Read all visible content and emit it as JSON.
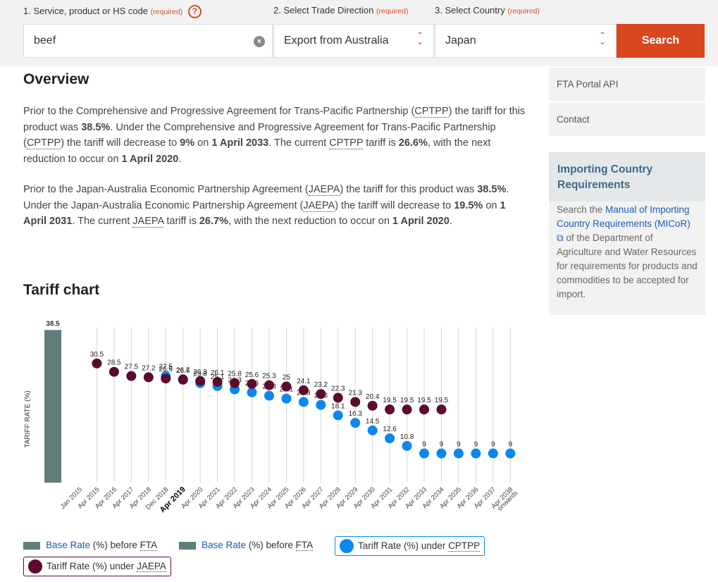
{
  "search": {
    "field1_label": "1. Service, product or HS code",
    "field1_req": "(required)",
    "help_icon": "question-icon",
    "product_value": "beef",
    "field2_label": "2. Select Trade Direction",
    "field2_req": "(required)",
    "direction_value": "Export from Australia",
    "field3_label": "3. Select Country",
    "field3_req": "(required)",
    "country_value": "Japan",
    "search_label": "Search"
  },
  "overview": {
    "title": "Overview",
    "p1": [
      {
        "t": "Prior to the Comprehensive and Progressive Agreement for Trans-Pacific Partnership ("
      },
      {
        "t": "CPTPP",
        "abbr": true
      },
      {
        "t": ") the tariff for this product was "
      },
      {
        "t": "38.5%",
        "b": true
      },
      {
        "t": ". Under the Comprehensive and Progressive Agreement for Trans-Pacific Partnership ("
      },
      {
        "t": "CPTPP",
        "abbr": true
      },
      {
        "t": ") the tariff will decrease to "
      },
      {
        "t": "9%",
        "b": true
      },
      {
        "t": " on "
      },
      {
        "t": "1 April 2033",
        "b": true
      },
      {
        "t": ". The current "
      },
      {
        "t": "CPTPP",
        "abbr": true
      },
      {
        "t": " tariff is "
      },
      {
        "t": "26.6%",
        "b": true
      },
      {
        "t": ", with the next reduction to occur on "
      },
      {
        "t": "1 April 2020",
        "b": true
      },
      {
        "t": "."
      }
    ],
    "p2": [
      {
        "t": "Prior to the Japan-Australia Economic Partnership Agreement ("
      },
      {
        "t": "JAEPA",
        "abbr": true
      },
      {
        "t": ") the tariff for this product was "
      },
      {
        "t": "38.5%",
        "b": true
      },
      {
        "t": ". Under the Japan-Australia Economic Partnership Agreement ("
      },
      {
        "t": "JAEPA",
        "abbr": true
      },
      {
        "t": ") the tariff will decrease to "
      },
      {
        "t": "19.5%",
        "b": true
      },
      {
        "t": " on "
      },
      {
        "t": "1 April 2031",
        "b": true
      },
      {
        "t": ". The current "
      },
      {
        "t": "JAEPA",
        "abbr": true
      },
      {
        "t": " tariff is "
      },
      {
        "t": "26.7%",
        "b": true
      },
      {
        "t": ", with the next reduction to occur on "
      },
      {
        "t": "1 April 2020",
        "b": true
      },
      {
        "t": "."
      }
    ]
  },
  "sidebar": {
    "link1": "FTA Portal API",
    "link2": "Contact",
    "box_title": "Importing Country Requirements",
    "box_pre": "Search the ",
    "box_link": "Manual of Importing Country Requirements (MICoR)",
    "box_post": " of the Department of Agriculture and Water Resources for requirements for products and commodities to be accepted for import."
  },
  "chart_title": "Tariff chart",
  "chart_data": {
    "type": "scatter",
    "ylabel": "TARIFF RATE (%)",
    "colors": {
      "base": "#607d7b",
      "cptpp": "#0b87ef",
      "jaepa": "#5c0a30"
    },
    "categories": [
      "Jan 2015",
      "Apr 2015",
      "Apr 2016",
      "Apr 2017",
      "Apr 2018",
      "Dec 2018",
      "Apr 2019",
      "Apr 2020",
      "Apr 2021",
      "Apr 2022",
      "Apr 2023",
      "Apr 2024",
      "Apr 2025",
      "Apr 2026",
      "Apr 2027",
      "Apr 2028",
      "Apr 2029",
      "Apr 2030",
      "Apr 2031",
      "Apr 2032",
      "Apr 2033",
      "Apr 2034",
      "Apr 2035",
      "Apr 2036",
      "Apr 2037",
      "Apr 2038 onwards"
    ],
    "highlight_category": "Apr 2019",
    "base_rate": {
      "category": "Jan 2015",
      "value": 38.5
    },
    "series": [
      {
        "name": "Tariff Rate (%) under CPTPP",
        "values": [
          null,
          null,
          null,
          null,
          null,
          27.5,
          26.6,
          25.8,
          25.1,
          24.3,
          23.6,
          22.8,
          22.1,
          21.3,
          20.6,
          18.1,
          16.3,
          14.5,
          12.6,
          10.8,
          9,
          9,
          9,
          9,
          9,
          9
        ]
      },
      {
        "name": "Tariff Rate (%) under JAEPA",
        "values": [
          null,
          30.5,
          28.5,
          27.5,
          27.2,
          26.9,
          26.7,
          26.3,
          26.1,
          25.8,
          25.6,
          25.3,
          25,
          24.1,
          23.2,
          22.3,
          21.3,
          20.4,
          19.5,
          19.5,
          19.5,
          19.5,
          null,
          null,
          null,
          null
        ]
      }
    ]
  },
  "legend": {
    "base1_pre": "Base Rate",
    "base1_post": " (%) before ",
    "base1_abbr": "FTA",
    "base2_pre": "Base Rate",
    "base2_post": " (%) before ",
    "base2_abbr": "FTA",
    "cptpp_pre": "Tariff Rate (%) under ",
    "cptpp_abbr": "CPTPP",
    "jaepa_pre": "Tariff Rate (%) under ",
    "jaepa_abbr": "JAEPA"
  }
}
